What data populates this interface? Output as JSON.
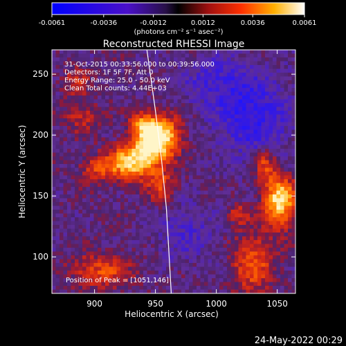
{
  "colorbar": {
    "ticks": [
      "-0.0061",
      "-0.0036",
      "-0.0012",
      "0.0012",
      "0.0036",
      "0.0061"
    ],
    "units_label": "(photons cm⁻² s⁻¹ asec⁻²)"
  },
  "chart_data": {
    "type": "heatmap",
    "title": "Reconstructed RHESSI Image",
    "xlabel": "Heliocentric X (arcsec)",
    "ylabel": "Heliocentric Y (arcsec)",
    "xlim": [
      865,
      1065
    ],
    "ylim": [
      70,
      270
    ],
    "x_ticks": [
      900,
      950,
      1000,
      1050
    ],
    "y_ticks": [
      100,
      150,
      200,
      250
    ],
    "color_range": [
      -0.0061,
      0.0061
    ],
    "colormap": "blue-purple-red-yellow-white",
    "info_lines": [
      "31-Oct-2015 00:33:56.000 to 00:39:56.000",
      "Detectors: 1F 5F 7F, Att 0",
      "Energy Range: 25.0 - 50.0 keV",
      "Clean     Total counts: 4.44E+03"
    ],
    "peak_label": "Position of Peak = [1051,146]",
    "peak_position": [
      1051,
      146
    ],
    "limb_curve": [
      [
        943,
        270
      ],
      [
        950,
        220
      ],
      [
        955,
        180
      ],
      [
        959,
        140
      ],
      [
        963,
        70
      ]
    ]
  },
  "footer": {
    "timestamp": "24-May-2022 00:29"
  }
}
